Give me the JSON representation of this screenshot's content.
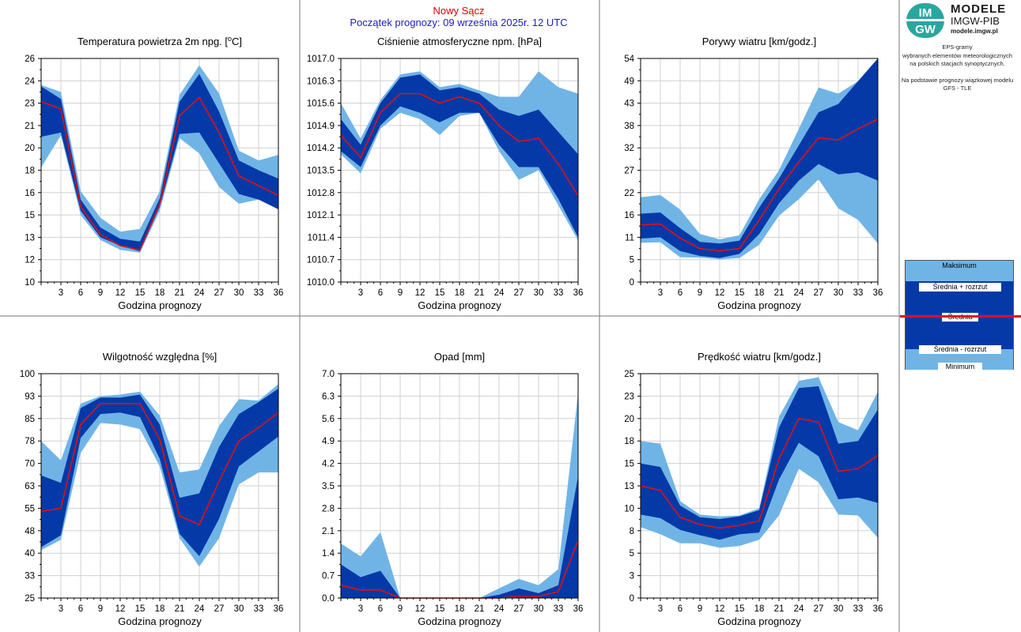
{
  "header": {
    "station": "Nowy Sącz",
    "forecast_start": "Początek prognozy: 09 września 2025r. 12 UTC"
  },
  "logo": {
    "badge_top": "IM",
    "badge_bottom": "GW",
    "line1": "MODELE",
    "line2": "IMGW-PIB",
    "line3": "modele.imgw.pl"
  },
  "info": {
    "line1": "EPS-gramy",
    "line2": "wybranych elementów meteorologicznych",
    "line3": "na polskich stacjach  synoptycznych.",
    "line4": "Na podstawie prognozy wiązkowej modelu",
    "line5": "GFS - TLE"
  },
  "legend": {
    "max": "Maksimum",
    "mean_plus": "Średnia + rozrzut",
    "mean": "Średnia",
    "mean_minus": "Średnia - rozrzut",
    "min": "Minimum"
  },
  "colors": {
    "outer_band": "#70b4e6",
    "inner_band": "#0539a8",
    "mean_line": "#e01010",
    "grid": "#d0d0d0"
  },
  "chart_data": [
    {
      "type": "area",
      "title": "Temperatura powietrza 2m npg. [°C]",
      "xlabel": "Godzina prognozy",
      "x": [
        0,
        3,
        6,
        9,
        12,
        15,
        18,
        21,
        24,
        27,
        30,
        33,
        36
      ],
      "xticks": [
        "3",
        "6",
        "9",
        "12",
        "15",
        "18",
        "21",
        "24",
        "27",
        "30",
        "33",
        "36"
      ],
      "ylim": [
        10,
        26
      ],
      "yticks": [
        "10",
        "12",
        "13",
        "15",
        "16",
        "18",
        "20",
        "21",
        "23",
        "24",
        "26"
      ],
      "max": [
        24.1,
        23.6,
        16.5,
        14.6,
        13.6,
        13.8,
        16.5,
        23.4,
        25.5,
        23.5,
        19.4,
        18.7,
        19.1
      ],
      "mean_plus": [
        24.0,
        23.1,
        15.9,
        13.9,
        13.1,
        12.9,
        16.0,
        22.9,
        24.9,
        22.2,
        18.7,
        18.0,
        17.4
      ],
      "mean": [
        22.9,
        22.4,
        15.4,
        13.4,
        12.6,
        12.3,
        15.6,
        21.9,
        23.2,
        20.7,
        17.6,
        16.9,
        16.2
      ],
      "mean_minus": [
        20.4,
        20.7,
        15.1,
        13.2,
        12.6,
        12.2,
        15.4,
        20.6,
        20.7,
        18.5,
        16.3,
        15.9,
        15.2
      ],
      "min": [
        18.2,
        20.5,
        14.8,
        13.0,
        12.3,
        12.1,
        15.1,
        20.3,
        19.2,
        16.8,
        15.6,
        15.9,
        15.4
      ]
    },
    {
      "type": "area",
      "title": "Ciśnienie atmosferyczne npm. [hPa]",
      "xlabel": "Godzina prognozy",
      "x": [
        0,
        3,
        6,
        9,
        12,
        15,
        18,
        21,
        24,
        27,
        30,
        33,
        36
      ],
      "xticks": [
        "3",
        "6",
        "9",
        "12",
        "15",
        "18",
        "21",
        "24",
        "27",
        "30",
        "33",
        "36"
      ],
      "ylim": [
        1010.0,
        1017.0
      ],
      "yticks": [
        "1010.0",
        "1010.7",
        "1011.4",
        "1012.1",
        "1012.8",
        "1013.5",
        "1014.2",
        "1014.9",
        "1015.6",
        "1016.3",
        "1017.0"
      ],
      "max": [
        1015.6,
        1014.5,
        1015.7,
        1016.5,
        1016.6,
        1016.1,
        1016.2,
        1016.0,
        1015.8,
        1015.8,
        1016.6,
        1016.1,
        1015.9
      ],
      "mean_plus": [
        1015.1,
        1014.3,
        1015.6,
        1016.4,
        1016.5,
        1016.0,
        1016.1,
        1015.9,
        1015.4,
        1015.2,
        1015.4,
        1014.7,
        1014.0
      ],
      "mean": [
        1014.6,
        1013.9,
        1015.3,
        1015.9,
        1015.9,
        1015.6,
        1015.8,
        1015.6,
        1014.9,
        1014.4,
        1014.5,
        1013.7,
        1012.7
      ],
      "mean_minus": [
        1014.1,
        1013.6,
        1014.9,
        1015.5,
        1015.3,
        1015.0,
        1015.3,
        1015.3,
        1014.3,
        1013.6,
        1013.6,
        1012.6,
        1011.4
      ],
      "min": [
        1014.0,
        1013.4,
        1014.8,
        1015.3,
        1015.1,
        1014.6,
        1015.2,
        1015.3,
        1014.1,
        1013.2,
        1013.5,
        1012.4,
        1011.3
      ]
    },
    {
      "type": "area",
      "title": "Porywy wiatru [km/godz.]",
      "xlabel": "Godzina prognozy",
      "x": [
        0,
        3,
        6,
        9,
        12,
        15,
        18,
        21,
        24,
        27,
        30,
        33,
        36
      ],
      "xticks": [
        "3",
        "6",
        "9",
        "12",
        "15",
        "18",
        "21",
        "24",
        "27",
        "30",
        "33",
        "36"
      ],
      "ylim": [
        0,
        54
      ],
      "yticks": [
        "0",
        "5",
        "11",
        "16",
        "22",
        "27",
        "32",
        "38",
        "43",
        "49",
        "54"
      ],
      "max": [
        20.5,
        21.0,
        17.5,
        11.6,
        10.3,
        11.3,
        20.0,
        27.0,
        37.0,
        47.0,
        45.5,
        48.5,
        54.0
      ],
      "mean_plus": [
        16.5,
        16.8,
        13.0,
        9.7,
        9.3,
        10.0,
        18.0,
        25.0,
        33.0,
        41.0,
        43.0,
        48.5,
        54.0
      ],
      "mean": [
        13.8,
        14.0,
        10.6,
        8.1,
        7.5,
        8.1,
        15.0,
        22.5,
        29.0,
        34.8,
        34.3,
        37.0,
        39.3
      ],
      "mean_minus": [
        10.5,
        10.8,
        7.5,
        6.3,
        5.8,
        6.8,
        11.6,
        19.0,
        24.5,
        28.5,
        26.0,
        26.5,
        24.5
      ],
      "min": [
        9.5,
        9.6,
        6.0,
        5.9,
        5.5,
        5.8,
        9.0,
        16.0,
        20.0,
        24.8,
        17.8,
        15.0,
        9.3
      ]
    },
    {
      "type": "area",
      "title": "Wilgotność względna [%]",
      "xlabel": "Godzina prognozy",
      "x": [
        0,
        3,
        6,
        9,
        12,
        15,
        18,
        21,
        24,
        27,
        30,
        33,
        36
      ],
      "xticks": [
        "3",
        "6",
        "9",
        "12",
        "15",
        "18",
        "21",
        "24",
        "27",
        "30",
        "33",
        "36"
      ],
      "ylim": [
        25,
        100
      ],
      "yticks": [
        "25",
        "33",
        "40",
        "48",
        "55",
        "63",
        "70",
        "78",
        "85",
        "93",
        "100"
      ],
      "max": [
        77.5,
        71.0,
        90.0,
        92.5,
        93.0,
        94.0,
        86.0,
        67.0,
        68.0,
        82.5,
        91.5,
        91.0,
        96.5
      ],
      "mean_plus": [
        66.0,
        63.5,
        88.5,
        92.0,
        92.0,
        93.0,
        83.0,
        58.5,
        60.0,
        75.5,
        86.5,
        90.5,
        95.0
      ],
      "mean": [
        54.0,
        55.0,
        83.0,
        90.0,
        90.0,
        90.0,
        78.0,
        52.5,
        49.5,
        64.0,
        77.5,
        82.0,
        87.0
      ],
      "mean_minus": [
        42.0,
        46.0,
        78.5,
        86.5,
        87.0,
        85.5,
        71.5,
        46.5,
        39.0,
        51.5,
        69.0,
        74.0,
        79.0
      ],
      "min": [
        41.0,
        44.5,
        73.5,
        83.5,
        83.0,
        81.5,
        69.0,
        45.0,
        35.5,
        45.0,
        63.0,
        67.0,
        67.0
      ]
    },
    {
      "type": "area",
      "title": "Opad [mm]",
      "xlabel": "Godzina prognozy",
      "x": [
        0,
        3,
        6,
        9,
        12,
        15,
        18,
        21,
        24,
        27,
        30,
        33,
        36
      ],
      "xticks": [
        "3",
        "6",
        "9",
        "12",
        "15",
        "18",
        "21",
        "24",
        "27",
        "30",
        "33",
        "36"
      ],
      "ylim": [
        0.0,
        7.0
      ],
      "yticks": [
        "0.0",
        "0.7",
        "1.4",
        "2.1",
        "2.8",
        "3.5",
        "4.2",
        "4.9",
        "5.6",
        "6.3",
        "7.0"
      ],
      "max": [
        1.7,
        1.3,
        2.05,
        0.0,
        0.0,
        0.0,
        0.0,
        0.0,
        0.3,
        0.6,
        0.4,
        0.9,
        6.4
      ],
      "mean_plus": [
        1.05,
        0.65,
        0.85,
        0.0,
        0.0,
        0.0,
        0.0,
        0.0,
        0.1,
        0.3,
        0.15,
        0.4,
        3.8
      ],
      "mean": [
        0.4,
        0.25,
        0.25,
        0.0,
        0.0,
        0.0,
        0.0,
        0.0,
        0.0,
        0.05,
        0.05,
        0.2,
        1.8
      ],
      "mean_minus": [
        0.0,
        0.0,
        0.0,
        0.0,
        0.0,
        0.0,
        0.0,
        0.0,
        0.0,
        0.0,
        0.0,
        0.0,
        0.0
      ],
      "min": [
        0.0,
        0.0,
        0.0,
        0.0,
        0.0,
        0.0,
        0.0,
        0.0,
        0.0,
        0.0,
        0.0,
        0.0,
        0.0
      ]
    },
    {
      "type": "area",
      "title": "Prędkość wiatru [km/godz.]",
      "xlabel": "Godzina prognozy",
      "x": [
        0,
        3,
        6,
        9,
        12,
        15,
        18,
        21,
        24,
        27,
        30,
        33,
        36
      ],
      "xticks": [
        "3",
        "6",
        "9",
        "12",
        "15",
        "18",
        "21",
        "24",
        "27",
        "30",
        "33",
        "36"
      ],
      "ylim": [
        0,
        25
      ],
      "yticks": [
        "0",
        "3",
        "5",
        "8",
        "10",
        "13",
        "15",
        "18",
        "20",
        "23",
        "25"
      ],
      "max": [
        17.5,
        17.2,
        10.8,
        9.3,
        9.1,
        9.2,
        10.0,
        20.2,
        24.2,
        24.6,
        19.6,
        18.7,
        23.0
      ],
      "mean_plus": [
        15.0,
        14.6,
        10.3,
        9.0,
        8.8,
        9.1,
        9.8,
        19.0,
        23.4,
        23.6,
        17.2,
        17.5,
        21.0
      ],
      "mean": [
        12.5,
        12.0,
        9.0,
        8.2,
        7.8,
        8.1,
        8.6,
        15.5,
        20.0,
        19.6,
        14.1,
        14.4,
        15.9
      ],
      "mean_minus": [
        9.3,
        8.9,
        7.6,
        7.0,
        6.5,
        7.1,
        7.3,
        13.2,
        17.3,
        15.8,
        11.0,
        11.2,
        10.6
      ],
      "min": [
        7.9,
        7.1,
        6.1,
        6.1,
        5.6,
        5.8,
        6.5,
        9.2,
        14.4,
        12.9,
        9.3,
        9.2,
        6.7
      ]
    }
  ]
}
